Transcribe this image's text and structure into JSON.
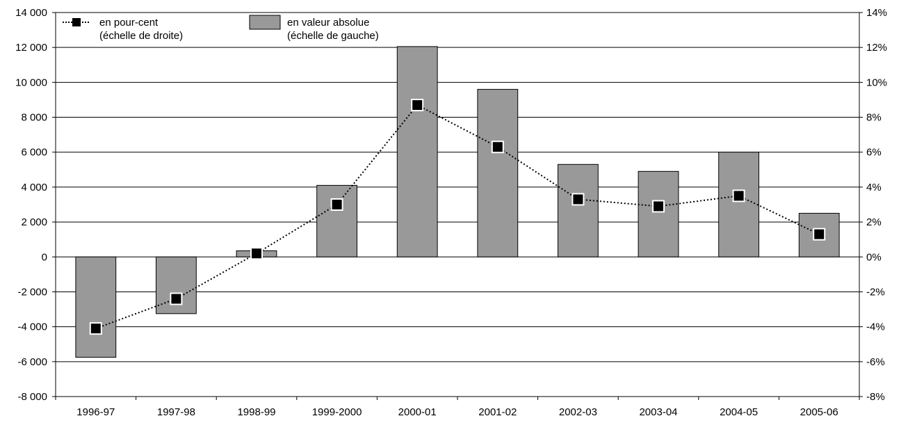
{
  "chart_data": {
    "type": "bar",
    "title": "",
    "xlabel": "",
    "ylabel": "",
    "categories": [
      "1996-97",
      "1997-98",
      "1998-99",
      "1999-2000",
      "2000-01",
      "2001-02",
      "2002-03",
      "2003-04",
      "2004-05",
      "2005-06"
    ],
    "series": [
      {
        "name": "en valeur absolue",
        "name_note": "(échelle de gauche)",
        "type": "bar",
        "axis": "left",
        "color": "#999999",
        "values": [
          -5750,
          -3250,
          350,
          4100,
          12050,
          9600,
          5300,
          4900,
          6000,
          2500
        ]
      },
      {
        "name": "en pour-cent",
        "name_note": "(échelle de droite)",
        "type": "line",
        "axis": "right",
        "color": "#000000",
        "values": [
          -4.1,
          -2.4,
          0.2,
          3.0,
          8.7,
          6.3,
          3.3,
          2.9,
          3.5,
          1.3
        ]
      }
    ],
    "ylim": [
      -8000,
      14000
    ],
    "y_ticks": [
      14000,
      12000,
      10000,
      8000,
      6000,
      4000,
      2000,
      0,
      -2000,
      -4000,
      -6000,
      -8000
    ],
    "y_tick_labels": [
      "14 000",
      "12 000",
      "10 000",
      "8 000",
      "6 000",
      "4 000",
      "2 000",
      "0",
      "-2 000",
      "-4 000",
      "-6 000",
      "-8 000"
    ],
    "y2lim": [
      -8,
      14
    ],
    "y2_ticks": [
      14,
      12,
      10,
      8,
      6,
      4,
      2,
      0,
      -2,
      -4,
      -6,
      -8
    ],
    "y2_tick_labels": [
      "14%",
      "12%",
      "10%",
      "8%",
      "6%",
      "4%",
      "2%",
      "0%",
      "-2%",
      "-4%",
      "-6%",
      "-8%"
    ],
    "grid": true,
    "legend_position": "top-left"
  }
}
